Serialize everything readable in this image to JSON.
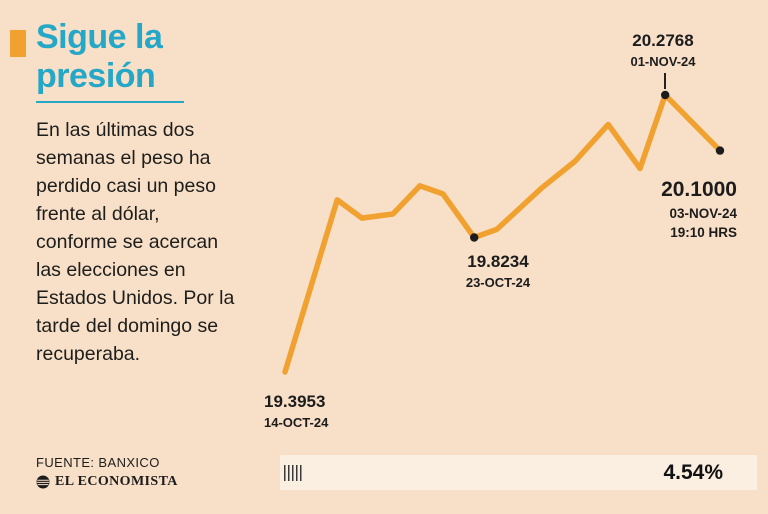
{
  "accent": {
    "teal": "#25a7c7",
    "orange": "#f1a12f"
  },
  "header": {
    "title_line1": "Sigue la",
    "title_line2": "presión"
  },
  "description": "En las últimas dos semanas el peso ha perdido casi un peso frente al dólar, conforme se acercan las elecciones en Estados Unidos. Por la tarde del domingo se recuperaba.",
  "source": {
    "label": "FUENTE: BANXICO",
    "brand": "EL ECONOMISTA"
  },
  "footer": {
    "change_percent": "4.54%"
  },
  "chart_data": {
    "type": "line",
    "line_color": "#f1a12f",
    "marker_color": "#1c1c1c",
    "ylim": [
      19.35,
      20.33
    ],
    "x_range_dates": [
      "14-OCT-24",
      "03-NOV-24"
    ],
    "points": [
      {
        "x": 0.0,
        "value": 19.3953
      },
      {
        "x": 0.12,
        "value": 19.943
      },
      {
        "x": 0.177,
        "value": 19.885
      },
      {
        "x": 0.248,
        "value": 19.898
      },
      {
        "x": 0.31,
        "value": 19.988
      },
      {
        "x": 0.363,
        "value": 19.962
      },
      {
        "x": 0.435,
        "value": 19.8234
      },
      {
        "x": 0.487,
        "value": 19.849
      },
      {
        "x": 0.591,
        "value": 19.982
      },
      {
        "x": 0.667,
        "value": 20.066
      },
      {
        "x": 0.743,
        "value": 20.183
      },
      {
        "x": 0.816,
        "value": 20.043
      },
      {
        "x": 0.874,
        "value": 20.2768
      },
      {
        "x": 1.0,
        "value": 20.1
      }
    ],
    "annotations": [
      {
        "value": "19.3953",
        "date": "14-OCT-24",
        "point_index": 0,
        "marker": false
      },
      {
        "value": "19.8234",
        "date": "23-OCT-24",
        "point_index": 6,
        "marker": true
      },
      {
        "value": "20.2768",
        "date": "01-NOV-24",
        "point_index": 12,
        "marker": true
      },
      {
        "value": "20.1000",
        "date": "03-NOV-24",
        "time": "19:10 HRS",
        "point_index": 13,
        "marker": true
      }
    ]
  }
}
